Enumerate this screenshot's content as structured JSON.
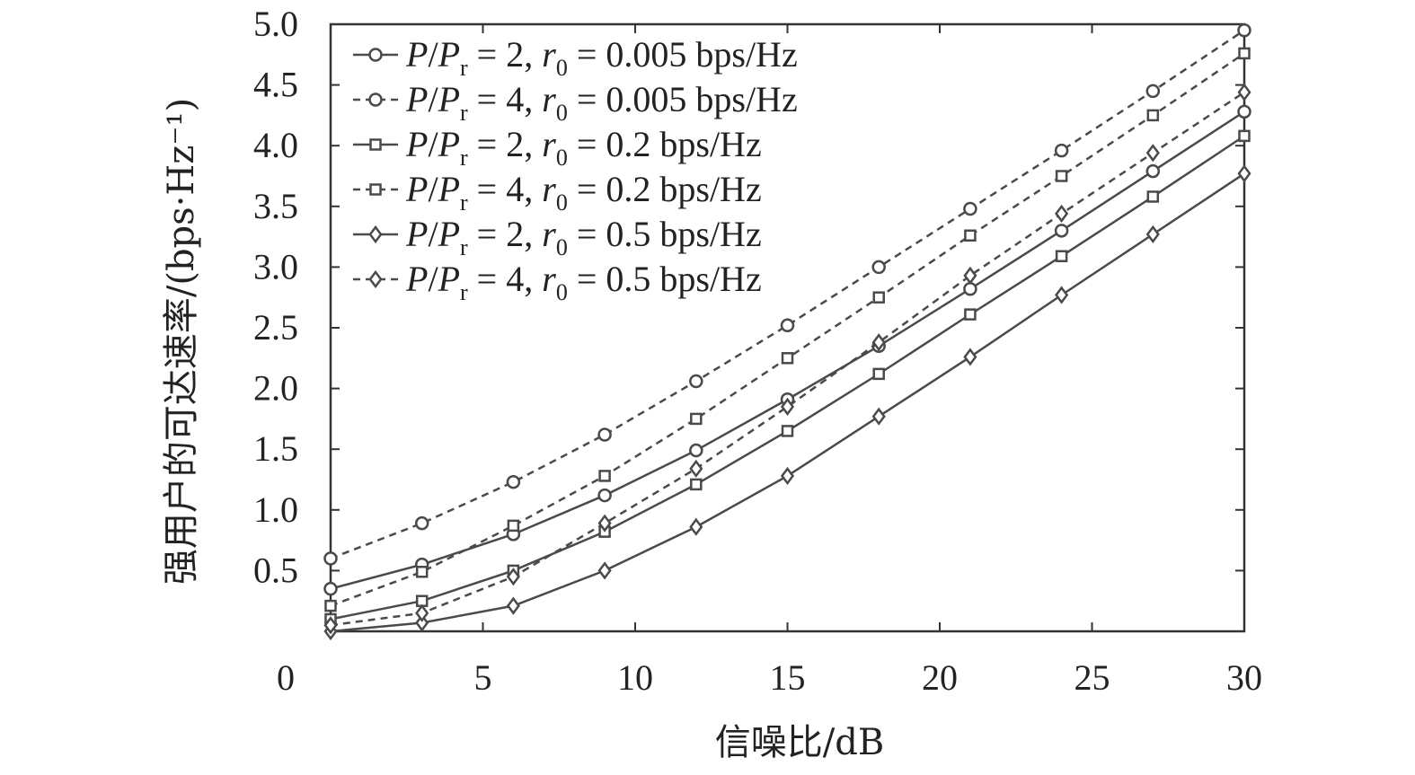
{
  "chart_data": {
    "type": "line",
    "title": "",
    "xlabel": "信噪比/dB",
    "ylabel": "强用户的可达速率/(bps·Hz⁻¹)",
    "xlim": [
      0,
      30
    ],
    "ylim": [
      0,
      5.0
    ],
    "xticks": [
      "0",
      "5",
      "10",
      "15",
      "20",
      "25",
      "30"
    ],
    "yticks": [
      "0.5",
      "1.0",
      "1.5",
      "2.0",
      "2.5",
      "3.0",
      "3.5",
      "4.0",
      "4.5",
      "5.0"
    ],
    "grid": false,
    "legend_position": "top-left",
    "x": [
      0,
      3,
      6,
      9,
      12,
      15,
      18,
      21,
      24,
      27,
      30
    ],
    "series": [
      {
        "name": "P/Pr = 2, r0 = 0.005 bps/Hz",
        "name_parts": {
          "ratio": "2",
          "rate": "0.005 bps/Hz"
        },
        "marker": "circle",
        "dash": "solid",
        "values": [
          0.35,
          0.55,
          0.8,
          1.12,
          1.49,
          1.91,
          2.35,
          2.82,
          3.3,
          3.79,
          4.28
        ]
      },
      {
        "name": "P/Pr = 4, r0 = 0.005 bps/Hz",
        "name_parts": {
          "ratio": "4",
          "rate": "0.005 bps/Hz"
        },
        "marker": "circle",
        "dash": "dashed",
        "values": [
          0.6,
          0.89,
          1.23,
          1.62,
          2.06,
          2.52,
          3.0,
          3.48,
          3.96,
          4.45,
          4.95
        ]
      },
      {
        "name": "P/Pr = 2, r0 = 0.2 bps/Hz",
        "name_parts": {
          "ratio": "2",
          "rate": "0.2 bps/Hz"
        },
        "marker": "square",
        "dash": "solid",
        "values": [
          0.1,
          0.25,
          0.5,
          0.82,
          1.21,
          1.65,
          2.12,
          2.61,
          3.09,
          3.58,
          4.08
        ]
      },
      {
        "name": "P/Pr = 4, r0 = 0.2 bps/Hz",
        "name_parts": {
          "ratio": "4",
          "rate": "0.2 bps/Hz"
        },
        "marker": "square",
        "dash": "dashed",
        "values": [
          0.21,
          0.49,
          0.87,
          1.28,
          1.75,
          2.25,
          2.75,
          3.26,
          3.75,
          4.25,
          4.76
        ]
      },
      {
        "name": "P/Pr = 2, r0 = 0.5 bps/Hz",
        "name_parts": {
          "ratio": "2",
          "rate": "0.5 bps/Hz"
        },
        "marker": "diamond",
        "dash": "solid",
        "values": [
          0.0,
          0.07,
          0.21,
          0.5,
          0.86,
          1.28,
          1.77,
          2.26,
          2.77,
          3.27,
          3.77
        ]
      },
      {
        "name": "P/Pr = 4, r0 = 0.5 bps/Hz",
        "name_parts": {
          "ratio": "4",
          "rate": "0.5 bps/Hz"
        },
        "marker": "diamond",
        "dash": "dashed",
        "values": [
          0.05,
          0.15,
          0.45,
          0.89,
          1.34,
          1.85,
          2.38,
          2.93,
          3.44,
          3.94,
          4.44
        ]
      }
    ]
  }
}
